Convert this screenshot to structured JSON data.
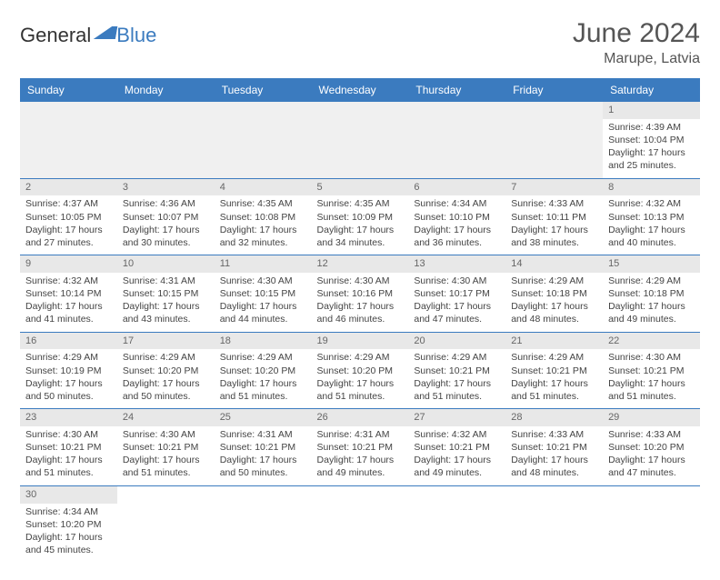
{
  "brand": {
    "part1": "General",
    "part2": "Blue"
  },
  "title": "June 2024",
  "location": "Marupe, Latvia",
  "colors": {
    "header_bg": "#3b7bbf",
    "header_text": "#ffffff",
    "daynum_bg": "#e8e8e8",
    "text": "#444444",
    "row_border": "#3b7bbf"
  },
  "day_names": [
    "Sunday",
    "Monday",
    "Tuesday",
    "Wednesday",
    "Thursday",
    "Friday",
    "Saturday"
  ],
  "weeks": [
    [
      null,
      null,
      null,
      null,
      null,
      null,
      {
        "n": "1",
        "sr": "4:39 AM",
        "ss": "10:04 PM",
        "dl": "17 hours and 25 minutes."
      }
    ],
    [
      {
        "n": "2",
        "sr": "4:37 AM",
        "ss": "10:05 PM",
        "dl": "17 hours and 27 minutes."
      },
      {
        "n": "3",
        "sr": "4:36 AM",
        "ss": "10:07 PM",
        "dl": "17 hours and 30 minutes."
      },
      {
        "n": "4",
        "sr": "4:35 AM",
        "ss": "10:08 PM",
        "dl": "17 hours and 32 minutes."
      },
      {
        "n": "5",
        "sr": "4:35 AM",
        "ss": "10:09 PM",
        "dl": "17 hours and 34 minutes."
      },
      {
        "n": "6",
        "sr": "4:34 AM",
        "ss": "10:10 PM",
        "dl": "17 hours and 36 minutes."
      },
      {
        "n": "7",
        "sr": "4:33 AM",
        "ss": "10:11 PM",
        "dl": "17 hours and 38 minutes."
      },
      {
        "n": "8",
        "sr": "4:32 AM",
        "ss": "10:13 PM",
        "dl": "17 hours and 40 minutes."
      }
    ],
    [
      {
        "n": "9",
        "sr": "4:32 AM",
        "ss": "10:14 PM",
        "dl": "17 hours and 41 minutes."
      },
      {
        "n": "10",
        "sr": "4:31 AM",
        "ss": "10:15 PM",
        "dl": "17 hours and 43 minutes."
      },
      {
        "n": "11",
        "sr": "4:30 AM",
        "ss": "10:15 PM",
        "dl": "17 hours and 44 minutes."
      },
      {
        "n": "12",
        "sr": "4:30 AM",
        "ss": "10:16 PM",
        "dl": "17 hours and 46 minutes."
      },
      {
        "n": "13",
        "sr": "4:30 AM",
        "ss": "10:17 PM",
        "dl": "17 hours and 47 minutes."
      },
      {
        "n": "14",
        "sr": "4:29 AM",
        "ss": "10:18 PM",
        "dl": "17 hours and 48 minutes."
      },
      {
        "n": "15",
        "sr": "4:29 AM",
        "ss": "10:18 PM",
        "dl": "17 hours and 49 minutes."
      }
    ],
    [
      {
        "n": "16",
        "sr": "4:29 AM",
        "ss": "10:19 PM",
        "dl": "17 hours and 50 minutes."
      },
      {
        "n": "17",
        "sr": "4:29 AM",
        "ss": "10:20 PM",
        "dl": "17 hours and 50 minutes."
      },
      {
        "n": "18",
        "sr": "4:29 AM",
        "ss": "10:20 PM",
        "dl": "17 hours and 51 minutes."
      },
      {
        "n": "19",
        "sr": "4:29 AM",
        "ss": "10:20 PM",
        "dl": "17 hours and 51 minutes."
      },
      {
        "n": "20",
        "sr": "4:29 AM",
        "ss": "10:21 PM",
        "dl": "17 hours and 51 minutes."
      },
      {
        "n": "21",
        "sr": "4:29 AM",
        "ss": "10:21 PM",
        "dl": "17 hours and 51 minutes."
      },
      {
        "n": "22",
        "sr": "4:30 AM",
        "ss": "10:21 PM",
        "dl": "17 hours and 51 minutes."
      }
    ],
    [
      {
        "n": "23",
        "sr": "4:30 AM",
        "ss": "10:21 PM",
        "dl": "17 hours and 51 minutes."
      },
      {
        "n": "24",
        "sr": "4:30 AM",
        "ss": "10:21 PM",
        "dl": "17 hours and 51 minutes."
      },
      {
        "n": "25",
        "sr": "4:31 AM",
        "ss": "10:21 PM",
        "dl": "17 hours and 50 minutes."
      },
      {
        "n": "26",
        "sr": "4:31 AM",
        "ss": "10:21 PM",
        "dl": "17 hours and 49 minutes."
      },
      {
        "n": "27",
        "sr": "4:32 AM",
        "ss": "10:21 PM",
        "dl": "17 hours and 49 minutes."
      },
      {
        "n": "28",
        "sr": "4:33 AM",
        "ss": "10:21 PM",
        "dl": "17 hours and 48 minutes."
      },
      {
        "n": "29",
        "sr": "4:33 AM",
        "ss": "10:20 PM",
        "dl": "17 hours and 47 minutes."
      }
    ],
    [
      {
        "n": "30",
        "sr": "4:34 AM",
        "ss": "10:20 PM",
        "dl": "17 hours and 45 minutes."
      },
      null,
      null,
      null,
      null,
      null,
      null
    ]
  ],
  "labels": {
    "sunrise": "Sunrise:",
    "sunset": "Sunset:",
    "daylight": "Daylight:"
  }
}
